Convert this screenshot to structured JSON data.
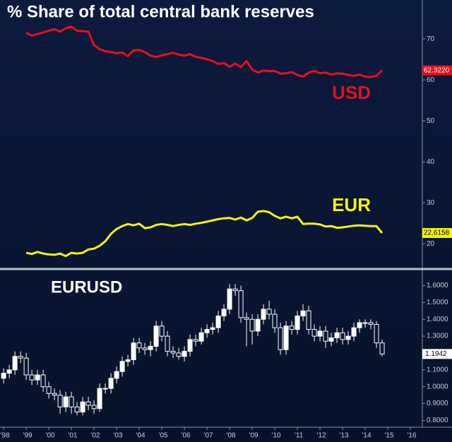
{
  "chart_data": [
    {
      "type": "line",
      "title": "% Share of total central bank reserves",
      "xlim": [
        1997.84,
        2016.53
      ],
      "ylim": [
        14,
        79.5
      ],
      "yticks": [
        20,
        30,
        40,
        50,
        60,
        70
      ],
      "grid": false,
      "x": [
        1999,
        1999.25,
        1999.5,
        1999.75,
        2000,
        2000.25,
        2000.5,
        2000.75,
        2001,
        2001.25,
        2001.5,
        2001.75,
        2002,
        2002.25,
        2002.5,
        2002.75,
        2003,
        2003.25,
        2003.5,
        2003.75,
        2004,
        2004.25,
        2004.5,
        2004.75,
        2005,
        2005.25,
        2005.5,
        2005.75,
        2006,
        2006.25,
        2006.5,
        2006.75,
        2007,
        2007.25,
        2007.5,
        2007.75,
        2008,
        2008.25,
        2008.5,
        2008.75,
        2009,
        2009.25,
        2009.5,
        2009.75,
        2010,
        2010.25,
        2010.5,
        2010.75,
        2011,
        2011.25,
        2011.5,
        2011.75,
        2012,
        2012.25,
        2012.5,
        2012.75,
        2013,
        2013.25,
        2013.5,
        2013.75,
        2014,
        2014.25,
        2014.5,
        2014.75
      ],
      "series": [
        {
          "name": "USD",
          "color": "#e8101a",
          "label_color": "#ffffff",
          "last_label": "62.3220",
          "values": [
            71.5,
            70.8,
            71.2,
            71.6,
            72.0,
            72.4,
            71.8,
            72.6,
            73.0,
            72.0,
            71.9,
            71.8,
            68.5,
            67.5,
            67.0,
            66.8,
            66.5,
            66.7,
            65.8,
            67.2,
            67.3,
            66.8,
            65.9,
            65.6,
            66.0,
            66.3,
            66.6,
            66.2,
            65.9,
            66.3,
            65.6,
            65.4,
            65.0,
            64.6,
            63.9,
            64.1,
            63.2,
            64.0,
            63.1,
            64.6,
            62.5,
            61.8,
            62.3,
            62.1,
            62.2,
            61.5,
            61.6,
            61.9,
            61.2,
            60.8,
            61.8,
            62.2,
            61.6,
            61.8,
            61.3,
            61.6,
            61.5,
            61.2,
            61.0,
            61.3,
            60.8,
            60.7,
            61.0,
            62.322
          ]
        },
        {
          "name": "EUR",
          "color": "#f5f500",
          "label_color": "#000000",
          "last_label": "22.6158",
          "values": [
            17.8,
            17.5,
            18.0,
            17.6,
            17.4,
            17.3,
            17.6,
            17.0,
            17.8,
            17.6,
            17.8,
            18.6,
            18.8,
            19.5,
            20.6,
            22.4,
            23.6,
            24.3,
            24.8,
            24.5,
            24.9,
            23.8,
            24.0,
            24.6,
            24.8,
            24.6,
            24.3,
            24.6,
            24.8,
            24.6,
            24.9,
            25.1,
            25.4,
            25.7,
            26.0,
            26.2,
            26.3,
            25.9,
            26.4,
            25.7,
            26.3,
            27.8,
            28.0,
            27.7,
            26.8,
            26.2,
            26.6,
            26.2,
            26.6,
            24.8,
            24.9,
            24.9,
            24.7,
            24.2,
            24.3,
            23.9,
            24.0,
            24.2,
            24.4,
            24.5,
            24.4,
            24.3,
            24.3,
            22.6158
          ]
        }
      ]
    },
    {
      "type": "candlestick",
      "title": "EURUSD",
      "color": "#ffffff",
      "last_label": "1.1942",
      "xlim": [
        1997.84,
        2016.53
      ],
      "ylim": [
        0.76,
        1.69
      ],
      "yticks": [
        {
          "value": 0.8,
          "label": "0.8000"
        },
        {
          "value": 0.9,
          "label": "0.9000"
        },
        {
          "value": 1.0,
          "label": "1.0000"
        },
        {
          "value": 1.1,
          "label": "1.1000"
        },
        {
          "value": 1.2,
          "label": "1.2000"
        },
        {
          "value": 1.3,
          "label": "1.3000"
        },
        {
          "value": 1.4,
          "label": "1.4000"
        },
        {
          "value": 1.5,
          "label": "1.5000"
        },
        {
          "value": 1.6,
          "label": "1.6000"
        }
      ],
      "xticks": [
        {
          "value": 1998,
          "label": "'98"
        },
        {
          "value": 1999,
          "label": "'99"
        },
        {
          "value": 2000,
          "label": "'00"
        },
        {
          "value": 2001,
          "label": "'01"
        },
        {
          "value": 2002,
          "label": "'02"
        },
        {
          "value": 2003,
          "label": "'03"
        },
        {
          "value": 2004,
          "label": "'04"
        },
        {
          "value": 2005,
          "label": "'05"
        },
        {
          "value": 2006,
          "label": "'06"
        },
        {
          "value": 2007,
          "label": "'07"
        },
        {
          "value": 2008,
          "label": "'08"
        },
        {
          "value": 2009,
          "label": "'09"
        },
        {
          "value": 2010,
          "label": "'10"
        },
        {
          "value": 2011,
          "label": "'11"
        },
        {
          "value": 2012,
          "label": "'12"
        },
        {
          "value": 2013,
          "label": "'13"
        },
        {
          "value": 2014,
          "label": "'14"
        },
        {
          "value": 2015,
          "label": "'15"
        },
        {
          "value": 2016,
          "label": "'16"
        }
      ],
      "x": [
        1998,
        1998.25,
        1998.5,
        1998.75,
        1999,
        1999.25,
        1999.5,
        1999.75,
        2000,
        2000.25,
        2000.5,
        2000.75,
        2001,
        2001.25,
        2001.5,
        2001.75,
        2002,
        2002.25,
        2002.5,
        2002.75,
        2003,
        2003.25,
        2003.5,
        2003.75,
        2004,
        2004.25,
        2004.5,
        2004.75,
        2005,
        2005.25,
        2005.5,
        2005.75,
        2006,
        2006.25,
        2006.5,
        2006.75,
        2007,
        2007.25,
        2007.5,
        2007.75,
        2008,
        2008.25,
        2008.5,
        2008.75,
        2009,
        2009.25,
        2009.5,
        2009.75,
        2010,
        2010.25,
        2010.5,
        2010.75,
        2011,
        2011.25,
        2011.5,
        2011.75,
        2012,
        2012.25,
        2012.5,
        2012.75,
        2013,
        2013.25,
        2013.5,
        2013.75,
        2014,
        2014.25,
        2014.5,
        2014.75
      ],
      "open": [
        1.05,
        1.08,
        1.1,
        1.18,
        1.17,
        1.07,
        1.04,
        1.07,
        1.0,
        0.96,
        0.95,
        0.88,
        0.94,
        0.88,
        0.85,
        0.91,
        0.89,
        0.87,
        0.99,
        0.99,
        1.05,
        1.09,
        1.15,
        1.16,
        1.26,
        1.23,
        1.22,
        1.24,
        1.36,
        1.3,
        1.21,
        1.2,
        1.18,
        1.21,
        1.28,
        1.27,
        1.32,
        1.34,
        1.35,
        1.42,
        1.46,
        1.58,
        1.57,
        1.41,
        1.4,
        1.33,
        1.4,
        1.46,
        1.43,
        1.35,
        1.22,
        1.36,
        1.34,
        1.42,
        1.45,
        1.34,
        1.3,
        1.33,
        1.27,
        1.29,
        1.32,
        1.28,
        1.3,
        1.35,
        1.38,
        1.38,
        1.37,
        1.26
      ],
      "high": [
        1.11,
        1.13,
        1.21,
        1.21,
        1.2,
        1.1,
        1.1,
        1.1,
        1.03,
        0.99,
        0.98,
        0.97,
        0.97,
        0.91,
        0.94,
        0.94,
        0.92,
        1.02,
        1.02,
        1.08,
        1.12,
        1.18,
        1.19,
        1.29,
        1.29,
        1.26,
        1.27,
        1.39,
        1.39,
        1.33,
        1.24,
        1.23,
        1.24,
        1.31,
        1.31,
        1.35,
        1.37,
        1.38,
        1.45,
        1.49,
        1.61,
        1.61,
        1.6,
        1.44,
        1.43,
        1.43,
        1.49,
        1.51,
        1.46,
        1.38,
        1.39,
        1.39,
        1.45,
        1.49,
        1.48,
        1.37,
        1.36,
        1.36,
        1.32,
        1.35,
        1.35,
        1.33,
        1.38,
        1.4,
        1.4,
        1.4,
        1.39,
        1.28
      ],
      "low": [
        1.02,
        1.05,
        1.07,
        1.14,
        1.04,
        1.01,
        1.01,
        0.97,
        0.93,
        0.92,
        0.84,
        0.85,
        0.84,
        0.83,
        0.83,
        0.86,
        0.84,
        0.85,
        0.96,
        0.96,
        1.02,
        1.06,
        1.12,
        1.13,
        1.2,
        1.19,
        1.18,
        1.21,
        1.27,
        1.18,
        1.17,
        1.16,
        1.15,
        1.18,
        1.24,
        1.25,
        1.29,
        1.31,
        1.32,
        1.39,
        1.43,
        1.54,
        1.38,
        1.24,
        1.25,
        1.3,
        1.37,
        1.4,
        1.32,
        1.19,
        1.19,
        1.31,
        1.31,
        1.39,
        1.31,
        1.27,
        1.27,
        1.23,
        1.24,
        1.26,
        1.25,
        1.25,
        1.27,
        1.32,
        1.35,
        1.34,
        1.23,
        1.18
      ],
      "close": [
        1.08,
        1.1,
        1.18,
        1.17,
        1.07,
        1.04,
        1.07,
        1.0,
        0.96,
        0.95,
        0.88,
        0.94,
        0.88,
        0.85,
        0.91,
        0.89,
        0.87,
        0.99,
        0.99,
        1.05,
        1.09,
        1.15,
        1.16,
        1.26,
        1.23,
        1.22,
        1.24,
        1.36,
        1.3,
        1.21,
        1.2,
        1.18,
        1.21,
        1.28,
        1.27,
        1.32,
        1.34,
        1.35,
        1.42,
        1.46,
        1.58,
        1.57,
        1.41,
        1.4,
        1.33,
        1.4,
        1.46,
        1.43,
        1.35,
        1.22,
        1.36,
        1.34,
        1.42,
        1.45,
        1.34,
        1.3,
        1.33,
        1.27,
        1.29,
        1.32,
        1.28,
        1.3,
        1.35,
        1.38,
        1.38,
        1.37,
        1.26,
        1.1942
      ]
    }
  ]
}
